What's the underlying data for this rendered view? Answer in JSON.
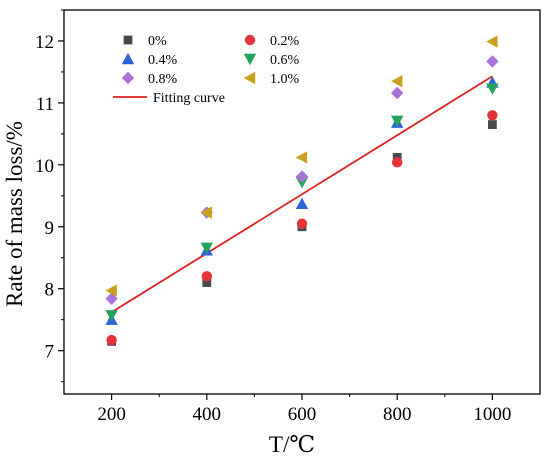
{
  "chart_data": {
    "type": "scatter",
    "title": "",
    "xlabel": "T/℃",
    "ylabel": "Rate of mass loss/%",
    "xlim": [
      100,
      1100
    ],
    "ylim": [
      6.3,
      12.5
    ],
    "xticks": [
      200,
      400,
      600,
      800,
      1000
    ],
    "yticks": [
      7,
      8,
      9,
      10,
      11,
      12
    ],
    "xtick_labels": [
      "200",
      "400",
      "600",
      "800",
      "1000"
    ],
    "ytick_labels": [
      "7",
      "8",
      "9",
      "10",
      "11",
      "12"
    ],
    "grid": false,
    "legend_position": "top-left",
    "series": [
      {
        "name": "0%",
        "marker": "square",
        "color": "#4a4a4a",
        "x": [
          200,
          400,
          600,
          800,
          1000
        ],
        "y": [
          7.15,
          8.1,
          9.0,
          10.12,
          10.65
        ]
      },
      {
        "name": "0.2%",
        "marker": "circle",
        "color": "#e3343a",
        "x": [
          200,
          400,
          600,
          800,
          1000
        ],
        "y": [
          7.17,
          8.2,
          9.05,
          10.04,
          10.8
        ]
      },
      {
        "name": "0.4%",
        "marker": "triangle-up",
        "color": "#2f63d8",
        "x": [
          200,
          400,
          600,
          800,
          1000
        ],
        "y": [
          7.5,
          8.62,
          9.37,
          10.68,
          11.33
        ]
      },
      {
        "name": "0.6%",
        "marker": "triangle-down",
        "color": "#23a45a",
        "x": [
          200,
          400,
          600,
          800,
          1000
        ],
        "y": [
          7.57,
          8.66,
          9.72,
          10.71,
          11.23
        ]
      },
      {
        "name": "0.8%",
        "marker": "diamond",
        "color": "#a972d6",
        "x": [
          200,
          400,
          600,
          800,
          1000
        ],
        "y": [
          7.84,
          9.23,
          9.81,
          11.16,
          11.67
        ]
      },
      {
        "name": "1.0%",
        "marker": "triangle-left",
        "color": "#c9a21c",
        "x": [
          200,
          400,
          600,
          800,
          1000
        ],
        "y": [
          7.97,
          9.23,
          10.12,
          11.35,
          11.99
        ]
      }
    ],
    "fitting_curve": {
      "name": "Fitting curve",
      "color": "#e02020",
      "x": [
        200,
        1000
      ],
      "y": [
        7.62,
        11.43
      ]
    },
    "legend_columns": [
      [
        "0%",
        "0.4%",
        "0.8%",
        "Fitting curve"
      ],
      [
        "0.2%",
        "0.6%",
        "1.0%"
      ]
    ]
  }
}
